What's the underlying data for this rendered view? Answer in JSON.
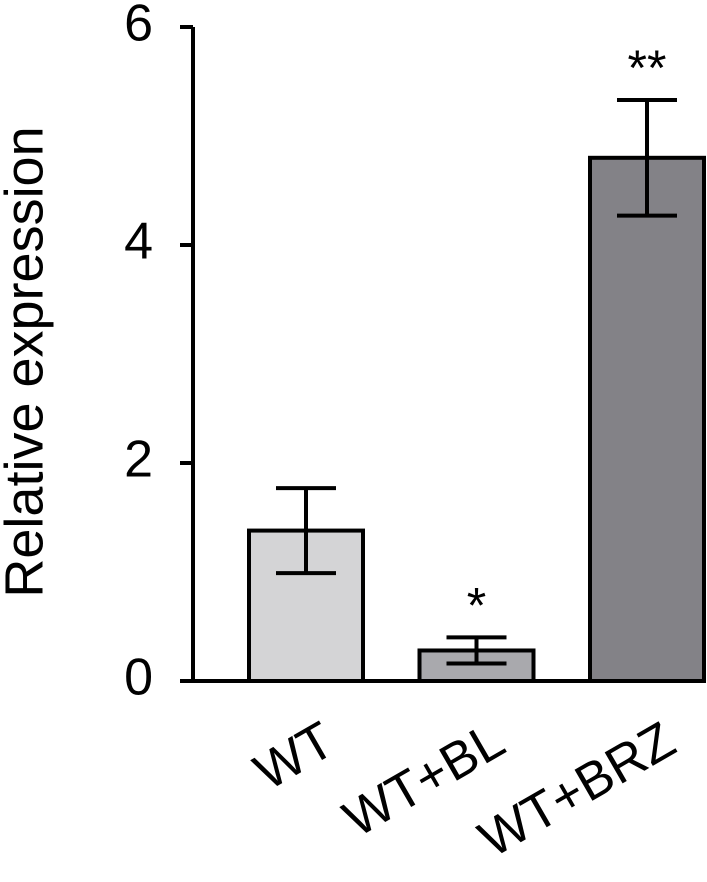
{
  "chart_data": {
    "type": "bar",
    "y_label": "Relative expression",
    "categories": [
      "WT",
      "WT+BL",
      "WT+BRZ"
    ],
    "values": [
      1.38,
      0.28,
      4.8
    ],
    "errors": [
      0.39,
      0.12,
      0.53
    ],
    "colors": [
      "#d4d4d6",
      "#a9a9ad",
      "#838287"
    ],
    "significance": [
      null,
      "*",
      "**"
    ],
    "ylim": [
      0,
      6
    ],
    "yticks": [
      0,
      2,
      4,
      6
    ],
    "grid": false
  }
}
